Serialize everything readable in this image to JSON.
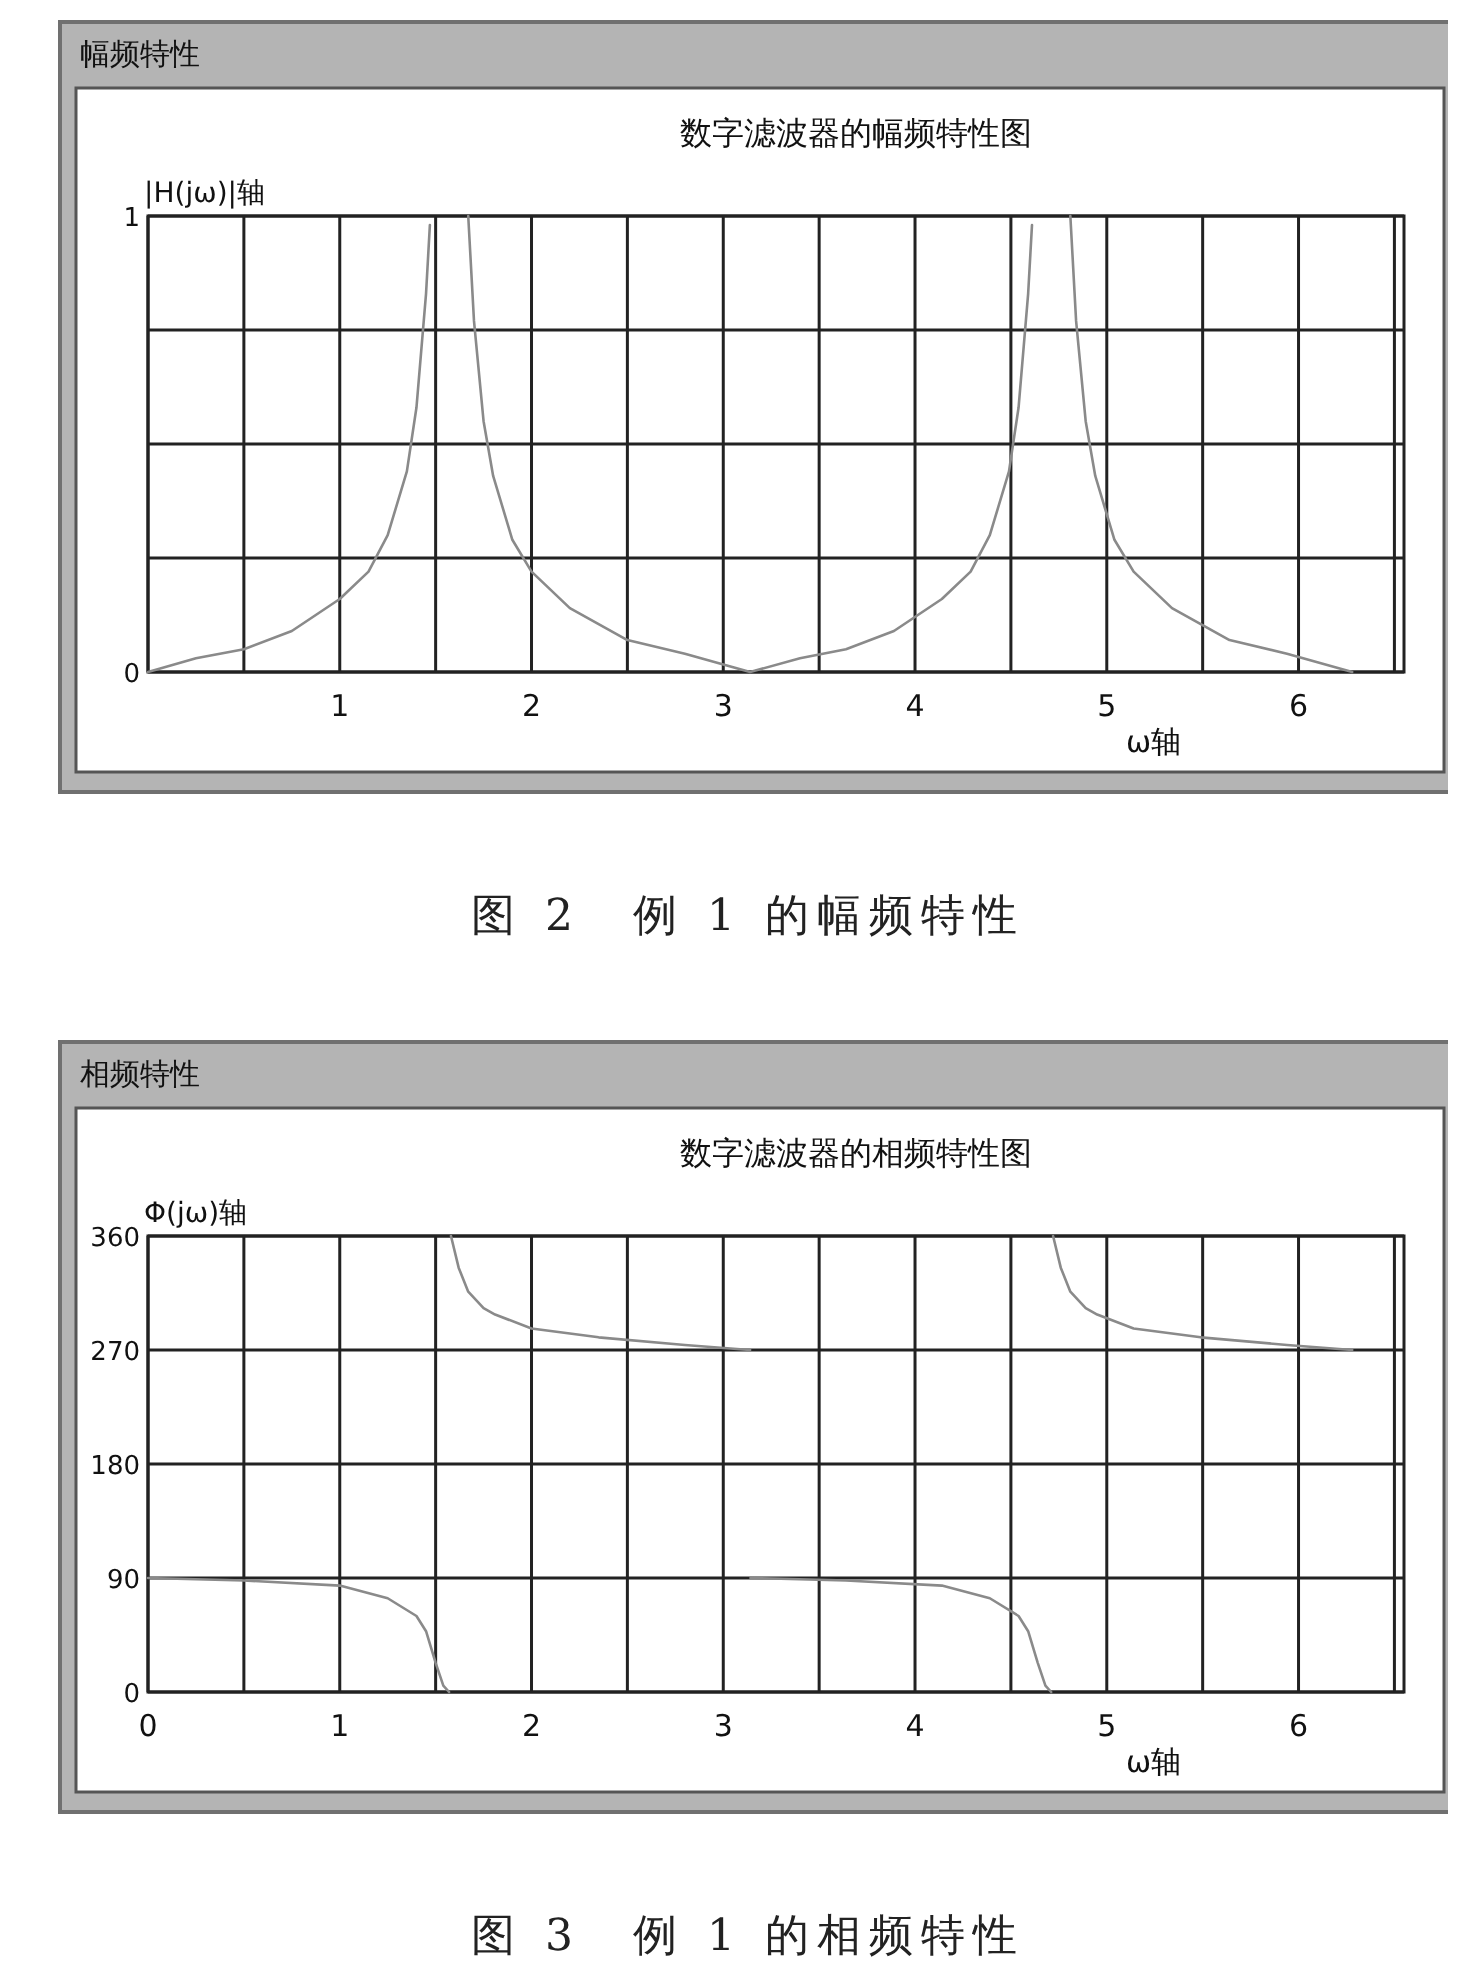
{
  "chart_data": [
    {
      "type": "line",
      "title": "数字滤波器的幅频特性图",
      "xlabel": "ω轴",
      "ylabel": "|H(jω)|轴",
      "annotations": [
        "幅频特性",
        "图 2　例 1 的幅频特性"
      ],
      "grid": true,
      "xlim": [
        0,
        6.55
      ],
      "ylim": [
        0,
        1
      ],
      "xticks": [
        {
          "value": 0,
          "label": null
        },
        {
          "value": 0.5,
          "label": null
        },
        1,
        {
          "value": 1.5,
          "label": null
        },
        2,
        {
          "value": 2.5,
          "label": null
        },
        3,
        {
          "value": 3.5,
          "label": null
        },
        4,
        {
          "value": 4.5,
          "label": null
        },
        5,
        {
          "value": 5.5,
          "label": null
        },
        6,
        {
          "value": 6.5,
          "label": null
        }
      ],
      "yticks": [
        0,
        {
          "value": 0.25,
          "label": null
        },
        {
          "value": 0.5,
          "label": null
        },
        {
          "value": 0.75,
          "label": null
        },
        1
      ],
      "x": [
        0,
        0.25,
        0.5,
        0.75,
        1.0,
        1.15,
        1.25,
        1.35,
        1.4,
        1.45,
        1.47,
        1.5708,
        1.67,
        1.7,
        1.75,
        1.8,
        1.9,
        2.0,
        2.2,
        2.5,
        2.8,
        3.14,
        3.4,
        3.64,
        3.89,
        4.14,
        4.29,
        4.39,
        4.49,
        4.54,
        4.59,
        4.61,
        4.7124,
        4.81,
        4.84,
        4.89,
        4.94,
        5.04,
        5.14,
        5.34,
        5.64,
        5.94,
        6.28
      ],
      "series": [
        {
          "color": "#8a8a8a",
          "values": [
            0,
            0.03,
            0.05,
            0.09,
            0.16,
            0.22,
            0.3,
            0.44,
            0.58,
            0.83,
            0.98,
            null,
            1.0,
            0.77,
            0.55,
            0.43,
            0.29,
            0.22,
            0.14,
            0.07,
            0.04,
            0,
            0.03,
            0.05,
            0.09,
            0.16,
            0.22,
            0.3,
            0.44,
            0.58,
            0.83,
            0.98,
            null,
            1.0,
            0.77,
            0.55,
            0.43,
            0.29,
            0.22,
            0.14,
            0.07,
            0.04,
            0
          ]
        }
      ]
    },
    {
      "type": "line",
      "title": "数字滤波器的相频特性图",
      "xlabel": "ω轴",
      "ylabel": "Φ(jω)轴",
      "annotations": [
        "相频特性",
        "图 3　例 1 的相频特性"
      ],
      "grid": true,
      "xlim": [
        0,
        6.55
      ],
      "ylim": [
        0,
        360
      ],
      "xticks": [
        0,
        {
          "value": 0.5,
          "label": null
        },
        1,
        {
          "value": 1.5,
          "label": null
        },
        2,
        {
          "value": 2.5,
          "label": null
        },
        3,
        {
          "value": 3.5,
          "label": null
        },
        4,
        {
          "value": 4.5,
          "label": null
        },
        5,
        {
          "value": 5.5,
          "label": null
        },
        6,
        {
          "value": 6.5,
          "label": null
        }
      ],
      "yticks": [
        0,
        90,
        180,
        270,
        360
      ],
      "x": [
        0,
        0.5,
        1.0,
        1.25,
        1.4,
        1.45,
        1.5,
        1.54,
        1.57,
        1.575,
        1.58,
        1.62,
        1.67,
        1.75,
        1.81,
        2.0,
        2.35,
        2.8,
        3.14,
        3.141,
        3.142,
        3.64,
        4.14,
        4.39,
        4.54,
        4.59,
        4.64,
        4.68,
        4.71,
        4.715,
        4.72,
        4.76,
        4.81,
        4.89,
        4.95,
        5.14,
        5.49,
        5.94,
        6.28
      ],
      "series": [
        {
          "color": "#8a8a8a",
          "values": [
            90,
            88,
            84,
            74,
            60,
            48,
            23,
            5,
            0,
            null,
            360,
            335,
            316,
            303,
            298,
            287,
            280,
            274,
            270,
            null,
            90,
            88,
            84,
            74,
            60,
            48,
            23,
            5,
            0,
            null,
            360,
            335,
            316,
            303,
            298,
            287,
            280,
            274,
            270
          ]
        }
      ]
    }
  ]
}
